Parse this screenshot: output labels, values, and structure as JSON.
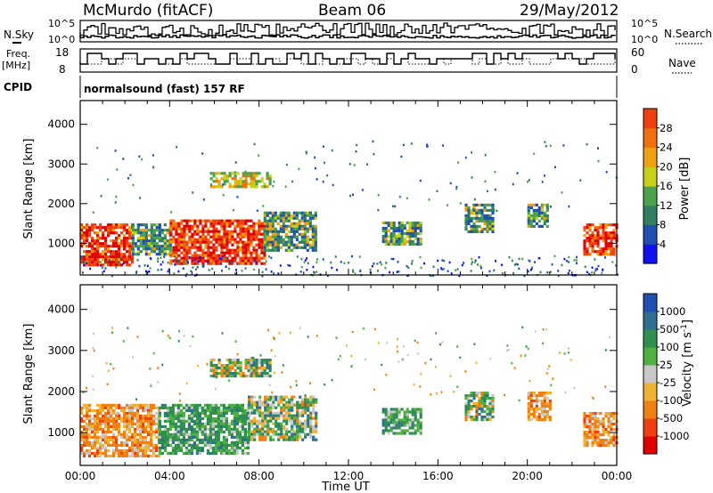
{
  "header": {
    "station": "McMurdo (fitACF)",
    "beam": "Beam 06",
    "date": "29/May/2012"
  },
  "strip_left": {
    "nsky": "N.Sky",
    "freq_line1": "Freq.",
    "freq_line2": "[MHz]",
    "cpid": "CPID"
  },
  "strip_right": {
    "nsearch": "N.Search",
    "nave": "Nave"
  },
  "strip_ticks": {
    "noise_left_top": "10^5",
    "noise_left_bottom": "10^0",
    "noise_right_top": "10^5",
    "noise_right_bottom": "10^0",
    "freq_top": "18",
    "freq_bottom": "8",
    "nave_top": "60",
    "nave_bottom": "0"
  },
  "cpid_text": "normalsound (fast) 157 RF",
  "colors": {
    "power_scale": [
      "#1010f0",
      "#1f4fb0",
      "#2f7f60",
      "#4aa34a",
      "#c8d018",
      "#f0a010",
      "#f07010",
      "#f04010",
      "#e00000"
    ],
    "velocity_scale": [
      "#e00000",
      "#f04010",
      "#f08010",
      "#f0b030",
      "#c8c8c8",
      "#50b040",
      "#2f8f50",
      "#2f6f90",
      "#1f4fb0"
    ]
  },
  "chart_data": [
    {
      "type": "heatmap",
      "panel": "power",
      "xlabel": "",
      "ylabel": "Slant Range [km]",
      "yticks": [
        "1000",
        "2000",
        "3000",
        "4000"
      ],
      "ylim": [
        200,
        4600
      ],
      "xlim_hours": [
        0,
        24
      ],
      "colorbar_label": "Power [dB]",
      "colorbar_ticks": [
        "4",
        "8",
        "12",
        "16",
        "20",
        "24",
        "28"
      ],
      "colorbar_range": [
        0,
        32
      ],
      "echo_regions": [
        {
          "t_start": 0.0,
          "t_end": 2.3,
          "r_low": 450,
          "r_high": 1500,
          "level": "high"
        },
        {
          "t_start": 2.3,
          "t_end": 4.0,
          "r_low": 700,
          "r_high": 1500,
          "level": "mid"
        },
        {
          "t_start": 4.0,
          "t_end": 8.2,
          "r_low": 500,
          "r_high": 1600,
          "level": "high"
        },
        {
          "t_start": 8.2,
          "t_end": 10.5,
          "r_low": 800,
          "r_high": 1800,
          "level": "mid"
        },
        {
          "t_start": 5.8,
          "t_end": 8.5,
          "r_low": 2400,
          "r_high": 2800,
          "level": "low"
        },
        {
          "t_start": 13.5,
          "t_end": 15.2,
          "r_low": 950,
          "r_high": 1550,
          "level": "mid"
        },
        {
          "t_start": 17.2,
          "t_end": 18.5,
          "r_low": 1300,
          "r_high": 2000,
          "level": "mid"
        },
        {
          "t_start": 20.0,
          "t_end": 20.9,
          "r_low": 1400,
          "r_high": 2000,
          "level": "mid"
        },
        {
          "t_start": 22.5,
          "t_end": 24.0,
          "r_low": 700,
          "r_high": 1500,
          "level": "high"
        }
      ]
    },
    {
      "type": "heatmap",
      "panel": "velocity",
      "xlabel": "Time UT",
      "ylabel": "Slant Range [km]",
      "yticks": [
        "1000",
        "2000",
        "3000",
        "4000"
      ],
      "ylim": [
        200,
        4600
      ],
      "xticks": [
        "00:00",
        "04:00",
        "08:00",
        "12:00",
        "16:00",
        "20:00",
        "00:00"
      ],
      "xlim_hours": [
        0,
        24
      ],
      "colorbar_label": "Velocity [m s^-1]",
      "colorbar_ticks": [
        "-1000",
        "-500",
        "-100",
        "-25",
        "25",
        "100",
        "500",
        "1000"
      ],
      "echo_regions": [
        {
          "t_start": 0.0,
          "t_end": 3.5,
          "r_low": 450,
          "r_high": 1700,
          "level": "neg"
        },
        {
          "t_start": 3.5,
          "t_end": 7.5,
          "r_low": 500,
          "r_high": 1700,
          "level": "pos"
        },
        {
          "t_start": 7.5,
          "t_end": 10.5,
          "r_low": 800,
          "r_high": 1900,
          "level": "mix"
        },
        {
          "t_start": 5.8,
          "t_end": 8.5,
          "r_low": 2400,
          "r_high": 2800,
          "level": "mix"
        },
        {
          "t_start": 13.5,
          "t_end": 15.2,
          "r_low": 950,
          "r_high": 1600,
          "level": "pos"
        },
        {
          "t_start": 17.2,
          "t_end": 18.5,
          "r_low": 1300,
          "r_high": 2000,
          "level": "mix"
        },
        {
          "t_start": 20.0,
          "t_end": 21.0,
          "r_low": 1300,
          "r_high": 2000,
          "level": "neg"
        },
        {
          "t_start": 22.5,
          "t_end": 24.0,
          "r_low": 700,
          "r_high": 1500,
          "level": "neg"
        }
      ]
    }
  ]
}
